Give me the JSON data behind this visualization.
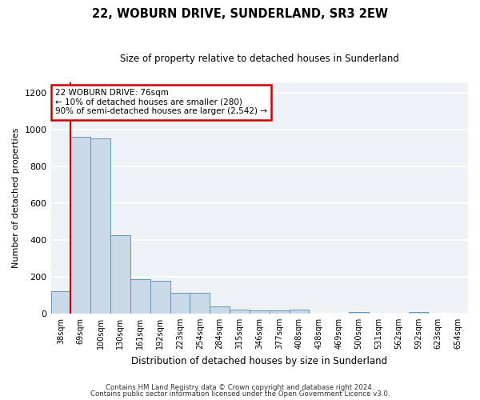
{
  "title": "22, WOBURN DRIVE, SUNDERLAND, SR3 2EW",
  "subtitle": "Size of property relative to detached houses in Sunderland",
  "xlabel": "Distribution of detached houses by size in Sunderland",
  "ylabel": "Number of detached properties",
  "bin_labels": [
    "38sqm",
    "69sqm",
    "100sqm",
    "130sqm",
    "161sqm",
    "192sqm",
    "223sqm",
    "254sqm",
    "284sqm",
    "315sqm",
    "346sqm",
    "377sqm",
    "408sqm",
    "438sqm",
    "469sqm",
    "500sqm",
    "531sqm",
    "562sqm",
    "592sqm",
    "623sqm",
    "654sqm"
  ],
  "bar_values": [
    120,
    960,
    955,
    425,
    185,
    180,
    115,
    115,
    40,
    20,
    15,
    15,
    20,
    0,
    0,
    10,
    0,
    0,
    10,
    0,
    0
  ],
  "bar_color": "#c9d9e8",
  "bar_edge_color": "#5588aa",
  "property_label": "22 WOBURN DRIVE: 76sqm",
  "annotation_line1": "← 10% of detached houses are smaller (280)",
  "annotation_line2": "90% of semi-detached houses are larger (2,542) →",
  "annotation_box_color": "#ffffff",
  "annotation_box_edge": "#cc0000",
  "vline_color": "#cc0000",
  "ylim": [
    0,
    1260
  ],
  "yticks": [
    0,
    200,
    400,
    600,
    800,
    1000,
    1200
  ],
  "footer_line1": "Contains HM Land Registry data © Crown copyright and database right 2024.",
  "footer_line2": "Contains public sector information licensed under the Open Government Licence v3.0.",
  "fig_width": 6.0,
  "fig_height": 5.0,
  "background_color": "#eef2f7"
}
